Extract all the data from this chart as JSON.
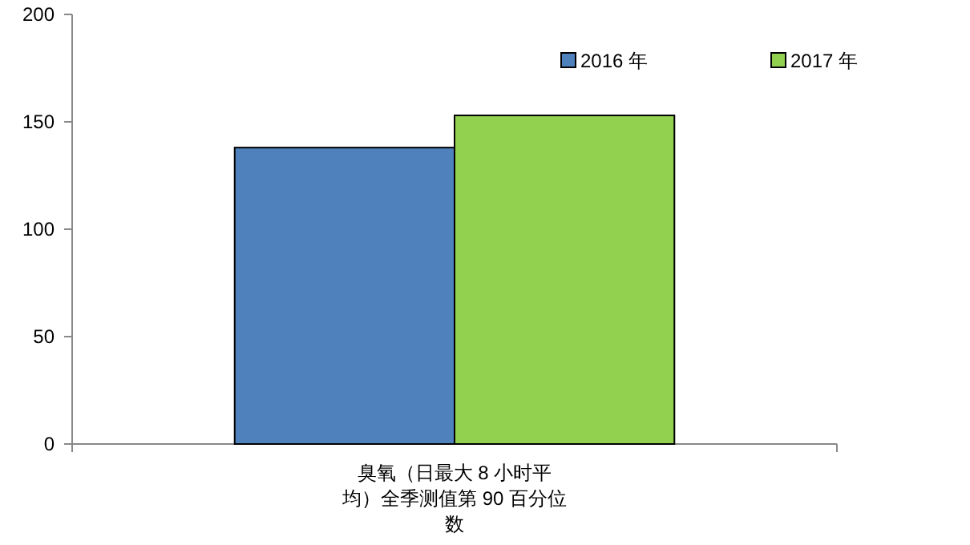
{
  "chart_data": {
    "type": "bar",
    "categories": [
      "臭氧（日最大 8 小时平均）全季测值第 90 百分位数"
    ],
    "series": [
      {
        "name": "2016 年",
        "color": "#4f81bd",
        "values": [
          138
        ]
      },
      {
        "name": "2017 年",
        "color": "#92d050",
        "values": [
          153
        ]
      }
    ],
    "ylim": [
      0,
      200
    ],
    "yticks": [
      0,
      50,
      100,
      150,
      200
    ],
    "legend": "top right",
    "grid": false
  }
}
